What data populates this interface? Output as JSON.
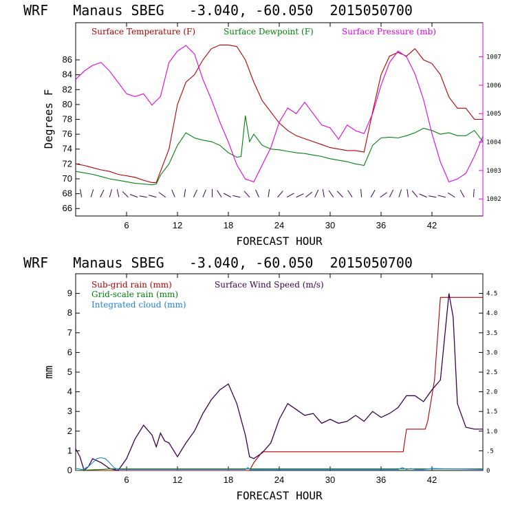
{
  "chart_data": [
    {
      "type": "line",
      "title": "WRF   Manaus SBEG   -3.040, -60.050  2015050700",
      "xlabel": "FORECAST HOUR",
      "ylabel": "Degrees F",
      "xlim": [
        0,
        48
      ],
      "ylim": [
        65,
        91
      ],
      "x_ticks": [
        6,
        12,
        18,
        24,
        30,
        36,
        42
      ],
      "y_ticks": [
        66,
        68,
        70,
        72,
        74,
        76,
        78,
        80,
        82,
        84,
        86
      ],
      "y2lim": [
        1001.4,
        1008.2
      ],
      "y2_ticks": [
        1002,
        1003,
        1004,
        1005,
        1006,
        1007
      ],
      "wind_barbs_row": true,
      "legend_placement": "top",
      "series": [
        {
          "name": "Surface Temperature (F)",
          "color": "#b00000",
          "axis": "left",
          "x": [
            0,
            1,
            2,
            3,
            4,
            5,
            6,
            7,
            8,
            9,
            9.5,
            10,
            11,
            12,
            13,
            14,
            15,
            16,
            17,
            18,
            19,
            20,
            21,
            22,
            23,
            24,
            25,
            26,
            27,
            28,
            29,
            30,
            31,
            32,
            33,
            34,
            35,
            36,
            37,
            38,
            39,
            40,
            41,
            42,
            43,
            44,
            45,
            46,
            47,
            48
          ],
          "y": [
            72,
            71.8,
            71.5,
            71.2,
            71,
            70.6,
            70.4,
            70.2,
            69.8,
            69.5,
            69.5,
            71,
            74,
            80,
            83,
            84,
            86,
            87.5,
            88,
            88,
            87.8,
            86,
            83,
            80.5,
            79,
            77.5,
            76.5,
            75.8,
            75.4,
            75,
            74.6,
            74.2,
            74,
            73.8,
            73.8,
            73.6,
            79,
            84,
            86.5,
            87,
            86.5,
            87.5,
            86,
            85.5,
            84,
            81,
            79.5,
            79.5,
            78,
            78
          ]
        },
        {
          "name": "Surface Dewpoint (F)",
          "color": "#00800a",
          "axis": "left",
          "x": [
            0,
            1,
            2,
            3,
            4,
            5,
            6,
            7,
            8,
            9,
            9.5,
            10,
            11,
            12,
            13,
            14,
            15,
            16,
            17,
            18,
            19,
            19.5,
            20,
            20.5,
            21,
            22,
            23,
            24,
            25,
            26,
            27,
            28,
            29,
            30,
            31,
            32,
            33,
            34,
            35,
            36,
            37,
            38,
            39,
            40,
            41,
            42,
            43,
            44,
            45,
            46,
            47,
            48
          ],
          "y": [
            71,
            70.8,
            70.6,
            70.3,
            70,
            69.8,
            69.6,
            69.4,
            69.3,
            69.2,
            69.3,
            70.5,
            72,
            74.5,
            76.2,
            75.5,
            75.2,
            75,
            74.5,
            73.5,
            72.9,
            73,
            78.5,
            75,
            76,
            74.5,
            74,
            73.9,
            73.7,
            73.5,
            73.4,
            73.2,
            73,
            72.7,
            72.5,
            72.3,
            72,
            71.8,
            74.5,
            75.5,
            75.6,
            75.5,
            75.8,
            76.2,
            76.8,
            76.5,
            76,
            76.2,
            75.8,
            75.8,
            76.5,
            75
          ]
        },
        {
          "name": "Surface Pressure (mb)",
          "color": "#e000e0",
          "axis": "right",
          "x": [
            0,
            1,
            2,
            3,
            4,
            5,
            6,
            7,
            8,
            9,
            10,
            11,
            12,
            13,
            14,
            15,
            16,
            17,
            18,
            19,
            20,
            21,
            22,
            23,
            24,
            25,
            26,
            27,
            28,
            29,
            30,
            31,
            32,
            33,
            34,
            35,
            36,
            37,
            38,
            39,
            40,
            41,
            42,
            43,
            44,
            45,
            46,
            47,
            48
          ],
          "y": [
            1006.2,
            1006.5,
            1006.7,
            1006.8,
            1006.5,
            1006.1,
            1005.7,
            1005.6,
            1005.7,
            1005.3,
            1005.6,
            1006.8,
            1007.2,
            1007.4,
            1007.1,
            1006.2,
            1005.5,
            1004.7,
            1004,
            1003.2,
            1002.7,
            1002.6,
            1003.2,
            1003.8,
            1004.7,
            1005.2,
            1005,
            1005.4,
            1005,
            1004.6,
            1004.5,
            1004.1,
            1004.6,
            1004.4,
            1004.3,
            1005,
            1006,
            1006.8,
            1007.2,
            1007,
            1006.4,
            1005.5,
            1004.3,
            1003.3,
            1002.6,
            1002.7,
            1002.9,
            1003.5,
            1004.2
          ]
        }
      ]
    },
    {
      "type": "line",
      "title": "WRF   Manaus SBEG   -3.040, -60.050  2015050700",
      "xlabel": "FORECAST HOUR",
      "ylabel": "mm",
      "xlim": [
        0,
        48
      ],
      "ylim": [
        0,
        10
      ],
      "x_ticks": [
        6,
        12,
        18,
        24,
        30,
        36,
        42
      ],
      "y_ticks": [
        0,
        1,
        2,
        3,
        4,
        5,
        6,
        7,
        8,
        9
      ],
      "y2lim": [
        0,
        5
      ],
      "y2_ticks": [
        "0",
        ".5",
        "1.0",
        "1.5",
        "2.0",
        "2.5",
        "3.0",
        "3.5",
        "4.0",
        "4.5"
      ],
      "legend_placement": "top-left",
      "series": [
        {
          "name": "Sub-grid rain (mm)",
          "color": "#b00000",
          "axis": "left",
          "x": [
            0,
            20.5,
            21,
            22,
            38.6,
            39,
            40,
            41.2,
            41.5,
            42.3,
            43,
            48
          ],
          "y": [
            0,
            0,
            0.4,
            0.95,
            0.95,
            2.1,
            2.1,
            2.1,
            2.5,
            4.6,
            8.8,
            8.8
          ]
        },
        {
          "name": "Surface Wind Speed (m/s)",
          "color": "#3a0050",
          "axis": "right",
          "x": [
            0,
            0.5,
            1,
            1.5,
            2,
            3,
            4,
            5,
            6,
            7,
            8,
            9,
            9.5,
            10,
            10.5,
            11,
            12,
            13,
            14,
            15,
            16,
            17,
            18,
            19,
            20,
            20.5,
            21,
            22,
            23,
            24,
            25,
            26,
            27,
            28,
            29,
            30,
            31,
            32,
            33,
            34,
            35,
            36,
            37,
            38,
            39,
            40,
            41,
            42,
            43,
            44,
            44.5,
            45,
            46,
            47,
            48
          ],
          "y": [
            0.55,
            0.35,
            0,
            0.1,
            0.3,
            0.2,
            0.05,
            0,
            0.3,
            0.8,
            1.15,
            0.9,
            0.6,
            0.95,
            0.75,
            0.7,
            0.35,
            0.7,
            1.0,
            1.45,
            1.8,
            2.05,
            2.2,
            1.7,
            0.9,
            0.35,
            0.3,
            0.45,
            0.7,
            1.3,
            1.7,
            1.55,
            1.4,
            1.45,
            1.2,
            1.3,
            1.2,
            1.25,
            1.4,
            1.25,
            1.5,
            1.35,
            1.45,
            1.6,
            1.9,
            1.9,
            1.75,
            2.05,
            2.3,
            4.5,
            3.9,
            1.7,
            1.1,
            1.05,
            1.05
          ]
        },
        {
          "name": "Grid-scale rain (mm)",
          "color": "#00800a",
          "axis": "left",
          "x": [
            0,
            3,
            4,
            48
          ],
          "y": [
            0,
            0.05,
            0.08,
            0.08
          ]
        },
        {
          "name": "Integrated cloud (mm)",
          "color": "#2080e0",
          "axis": "left",
          "x": [
            0,
            0.8,
            1.5,
            2,
            2.5,
            3,
            3.5,
            4,
            4.5,
            5,
            6,
            20,
            20.3,
            20.6,
            38,
            38.5,
            39,
            39.5,
            40,
            41,
            42,
            48
          ],
          "y": [
            0.1,
            0.05,
            0.2,
            0.4,
            0.6,
            0.65,
            0.6,
            0.4,
            0.15,
            0.05,
            0.05,
            0.05,
            0.15,
            0.05,
            0.05,
            0.15,
            0.05,
            0.1,
            0.05,
            0.05,
            0.1,
            0.05
          ]
        }
      ]
    }
  ]
}
